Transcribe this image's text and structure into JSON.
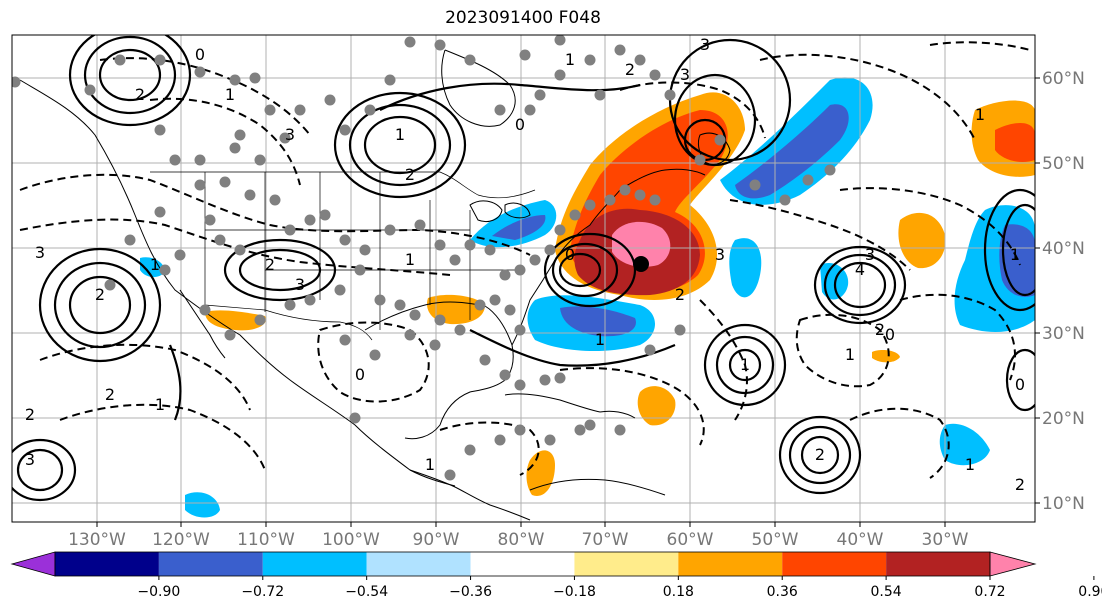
{
  "title": "2023091400 F048",
  "lon_ticks": [
    "130°W",
    "120°W",
    "110°W",
    "100°W",
    "90°W",
    "80°W",
    "70°W",
    "60°W",
    "50°W",
    "40°W",
    "30°W"
  ],
  "lat_ticks": [
    "60°N",
    "50°N",
    "40°N",
    "30°N",
    "20°N",
    "10°N"
  ],
  "colorbar": {
    "colors": [
      "#9b30d9",
      "#00008b",
      "#3a5fcd",
      "#00bfff",
      "#b0e2ff",
      "#ffffff",
      "#ffec8b",
      "#ffa500",
      "#ff4500",
      "#b22222",
      "#ff82ab"
    ],
    "labels": [
      "−0.90",
      "−0.72",
      "−0.54",
      "−0.36",
      "−0.18",
      "0.18",
      "0.36",
      "0.54",
      "0.72",
      "0.90"
    ]
  },
  "contour_labels": [
    "2",
    "1",
    "0",
    "1",
    "2",
    "3",
    "4",
    "3",
    "2",
    "1",
    "0",
    "1",
    "2",
    "3",
    "3",
    "2",
    "1",
    "0",
    "1",
    "2",
    "3",
    "2",
    "1",
    "0",
    "1",
    "2",
    "3",
    "3",
    "2",
    "1",
    "0",
    "1",
    "1",
    "0",
    "1",
    "2",
    "3",
    "2",
    "1"
  ],
  "colors": {
    "pink": "#ff82ab",
    "darkred": "#b22222",
    "orangered": "#ff4500",
    "orange": "#ffa500",
    "lightblue": "#b0e2ff",
    "deepskyblue": "#00bfff",
    "royalblue": "#3a5fcd",
    "grid": "#b0b0b0",
    "dots": "#808080"
  }
}
